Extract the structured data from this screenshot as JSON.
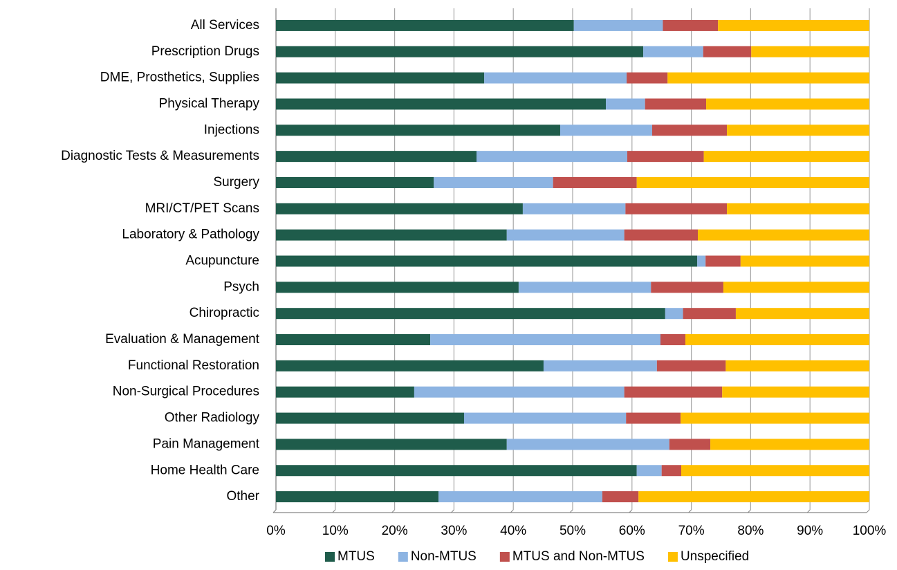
{
  "chart_data": {
    "type": "stacked_barh",
    "categories": [
      "All Services",
      "Prescription Drugs",
      "DME, Prosthetics, Supplies",
      "Physical Therapy",
      "Injections",
      "Diagnostic Tests & Measurements",
      "Surgery",
      "MRI/CT/PET Scans",
      "Laboratory & Pathology",
      "Acupuncture",
      "Psych",
      "Chiropractic",
      "Evaluation & Management",
      "Functional Restoration",
      "Non-Surgical Procedures",
      "Other Radiology",
      "Pain Management",
      "Home Health Care",
      "Other"
    ],
    "series": [
      {
        "name": "MTUS",
        "color": "#1f5c4b",
        "values": [
          50.2,
          61.9,
          35.1,
          55.6,
          47.9,
          33.8,
          26.6,
          41.6,
          38.9,
          71.0,
          40.9,
          65.6,
          26.0,
          45.1,
          23.3,
          31.7,
          38.9,
          60.8,
          27.4
        ]
      },
      {
        "name": "Non-MTUS",
        "color": "#8db4e2",
        "values": [
          15.0,
          10.1,
          24.0,
          6.6,
          15.5,
          25.4,
          20.1,
          17.3,
          19.8,
          1.4,
          22.3,
          3.0,
          38.8,
          19.1,
          35.4,
          27.3,
          27.4,
          4.2,
          27.6
        ]
      },
      {
        "name": "MTUS and Non-MTUS",
        "color": "#c0504d",
        "values": [
          9.3,
          8.1,
          6.9,
          10.3,
          12.6,
          12.9,
          14.1,
          17.1,
          12.4,
          5.9,
          12.2,
          8.9,
          4.2,
          11.6,
          16.5,
          9.2,
          6.9,
          3.3,
          6.1
        ]
      },
      {
        "name": "Unspecified",
        "color": "#ffc000",
        "values": [
          25.5,
          19.9,
          34.0,
          27.5,
          24.0,
          27.9,
          39.2,
          24.0,
          28.9,
          21.7,
          24.6,
          22.5,
          31.0,
          24.2,
          24.8,
          31.8,
          26.8,
          31.7,
          38.9
        ]
      }
    ],
    "xlim": [
      0,
      100
    ],
    "xticks": [
      {
        "value": 0,
        "label": "0%"
      },
      {
        "value": 10,
        "label": "10%"
      },
      {
        "value": 20,
        "label": "20%"
      },
      {
        "value": 30,
        "label": "30%"
      },
      {
        "value": 40,
        "label": "40%"
      },
      {
        "value": 50,
        "label": "50%"
      },
      {
        "value": 60,
        "label": "60%"
      },
      {
        "value": 70,
        "label": "70%"
      },
      {
        "value": 80,
        "label": "80%"
      },
      {
        "value": 90,
        "label": "90%"
      },
      {
        "value": 100,
        "label": "100%"
      }
    ],
    "grid": true,
    "legend": "bottom"
  }
}
